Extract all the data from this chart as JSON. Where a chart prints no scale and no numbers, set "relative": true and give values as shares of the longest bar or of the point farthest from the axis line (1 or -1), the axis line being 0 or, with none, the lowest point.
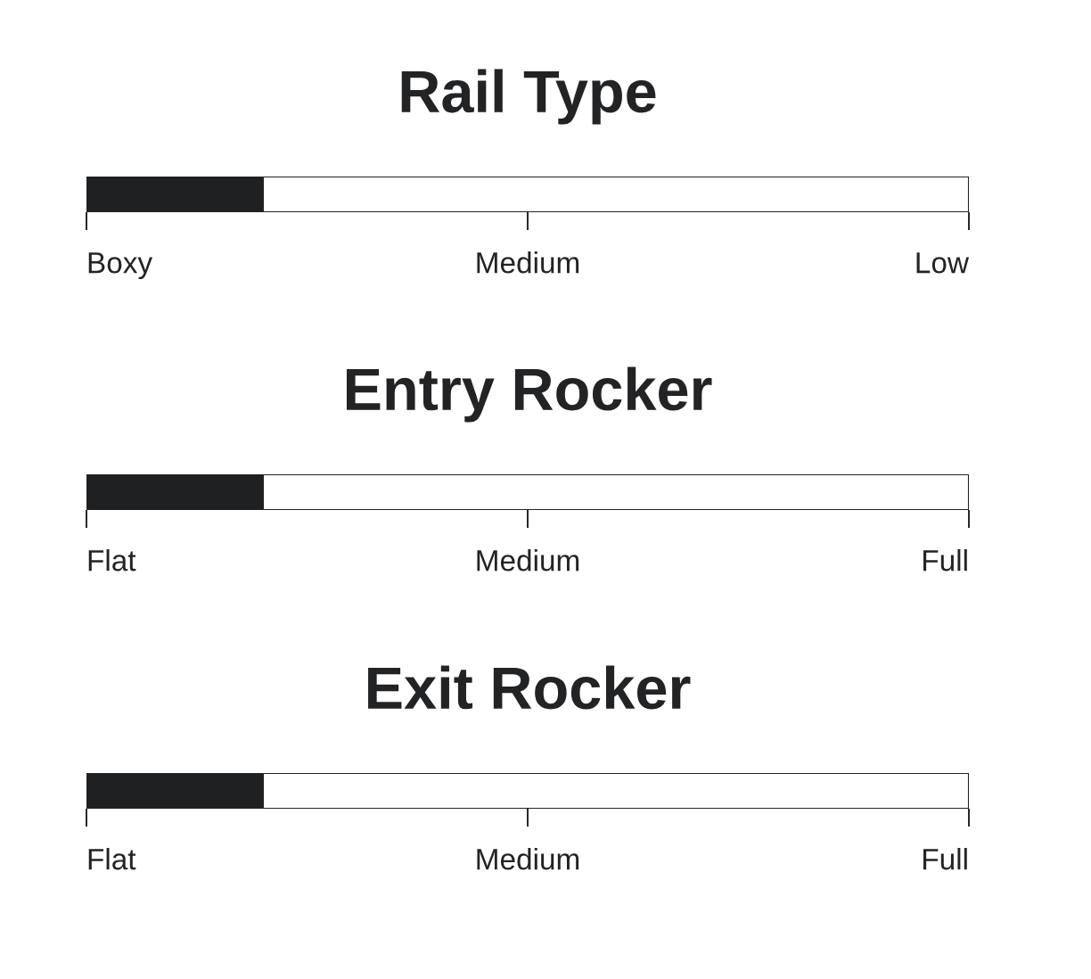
{
  "chart_data": [
    {
      "type": "bar",
      "orientation": "horizontal",
      "stacked": true,
      "relative": true,
      "title": "Rail Type",
      "categories": [
        null
      ],
      "series": [
        {
          "color": "#1f2022",
          "values": [
            0.2
          ]
        },
        {
          "color": "#ffffff",
          "values": [
            0.8
          ]
        }
      ],
      "annotations": [
        "Boxy",
        "Medium",
        "Low"
      ],
      "tick_labels": false
    },
    {
      "type": "bar",
      "orientation": "horizontal",
      "stacked": true,
      "relative": true,
      "title": "Entry Rocker",
      "categories": [
        null
      ],
      "series": [
        {
          "color": "#1f2022",
          "values": [
            0.2
          ]
        },
        {
          "color": "#ffffff",
          "values": [
            0.8
          ]
        }
      ],
      "annotations": [
        "Flat",
        "Medium",
        "Full"
      ],
      "tick_labels": false
    },
    {
      "type": "bar",
      "orientation": "horizontal",
      "stacked": true,
      "relative": true,
      "title": "Exit Rocker",
      "categories": [
        null
      ],
      "series": [
        {
          "color": "#1f2022",
          "values": [
            0.2
          ]
        },
        {
          "color": "#ffffff",
          "values": [
            0.8
          ]
        }
      ],
      "annotations": [
        "Flat",
        "Medium",
        "Full"
      ],
      "tick_labels": false
    }
  ]
}
